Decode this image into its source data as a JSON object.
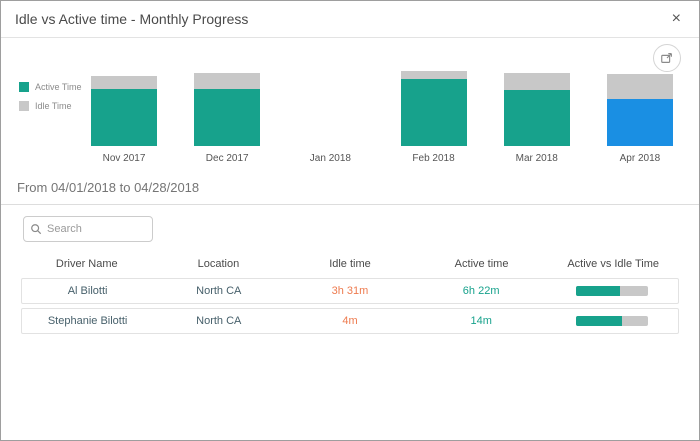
{
  "dialog": {
    "title": "Idle vs Active time - Monthly Progress",
    "close": "×"
  },
  "legend": {
    "items": [
      {
        "label": "Active Time",
        "color": "#17a28c"
      },
      {
        "label": "Idle Time",
        "color": "#c8c8c8"
      }
    ]
  },
  "chart_data": {
    "type": "bar",
    "stacked": true,
    "categories": [
      "Nov 2017",
      "Dec 2017",
      "Jan 2018",
      "Feb 2018",
      "Mar 2018",
      "Apr 2018"
    ],
    "series": [
      {
        "name": "Active Time",
        "values": [
          57,
          57,
          0,
          67,
          56,
          47
        ]
      },
      {
        "name": "Idle Time",
        "values": [
          13,
          16,
          0,
          8,
          17,
          25
        ]
      }
    ],
    "unit": "relative-height",
    "selected_category": "Apr 2018",
    "colors": {
      "active": "#17a28c",
      "idle": "#c8c8c8",
      "selected": "#1a8fe3"
    },
    "legend_position": "left",
    "axes": "none",
    "grid": false
  },
  "period": {
    "label": "From 04/01/2018 to 04/28/2018"
  },
  "search": {
    "placeholder": "Search"
  },
  "table": {
    "headers": [
      "Driver Name",
      "Location",
      "Idle time",
      "Active time",
      "Active vs Idle Time"
    ],
    "rows": [
      {
        "driver": "Al Bilotti",
        "location": "North CA",
        "idle_time": "3h 31m",
        "active_time": "6h 22m",
        "active_pct": 61
      },
      {
        "driver": "Stephanie Bilotti",
        "location": "North CA",
        "idle_time": "4m",
        "active_time": "14m",
        "active_pct": 64
      }
    ],
    "colors": {
      "idle_text": "#ee7b4f",
      "active_text": "#17a28c",
      "bar_active": "#17a28c",
      "bar_idle": "#c8c8c8"
    }
  }
}
